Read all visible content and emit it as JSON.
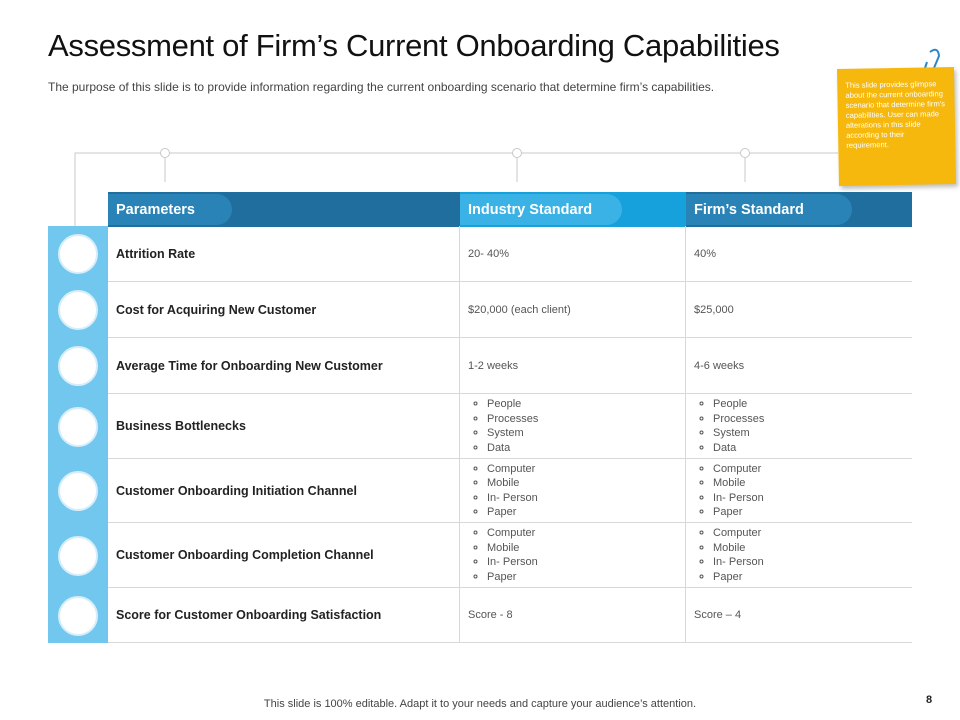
{
  "header": {
    "title": "Assessment of Firm’s Current Onboarding Capabilities",
    "subtitle": "The purpose of this slide is to provide information regarding the current onboarding  scenario that determine firm’s capabilities."
  },
  "note": "This slide provides glimpse about the current onboarding scenario  that determine firm's capabilities. User can made alterations in this slide according to their requirement.",
  "table": {
    "columns": [
      "Parameters",
      "Industry Standard",
      "Firm’s Standard"
    ],
    "rows": [
      {
        "parameter": "Attrition Rate",
        "industry": "20- 40%",
        "firm": "40%"
      },
      {
        "parameter": "Cost for Acquiring New Customer",
        "industry": "$20,000 (each client)",
        "firm": "$25,000"
      },
      {
        "parameter": "Average Time for Onboarding New Customer",
        "industry": "1-2 weeks",
        "firm": "4-6 weeks"
      },
      {
        "parameter": "Business Bottlenecks",
        "industry": [
          "People",
          "Processes",
          "System",
          "Data"
        ],
        "firm": [
          "People",
          "Processes",
          "System",
          "Data"
        ]
      },
      {
        "parameter": "Customer Onboarding Initiation Channel",
        "industry": [
          "Computer",
          "Mobile",
          "In- Person",
          "Paper"
        ],
        "firm": [
          "Computer",
          "Mobile",
          "In- Person",
          "Paper"
        ]
      },
      {
        "parameter": "Customer Onboarding Completion Channel",
        "industry": [
          "Computer",
          "Mobile",
          "In- Person",
          "Paper"
        ],
        "firm": [
          "Computer",
          "Mobile",
          "In- Person",
          "Paper"
        ]
      },
      {
        "parameter": "Score for Customer Onboarding Satisfaction",
        "industry": "Score - 8",
        "firm": "Score – 4"
      }
    ]
  },
  "footer": {
    "text": "This slide is 100% editable. Adapt it to your needs and capture your audience’s attention.",
    "page": "8"
  }
}
